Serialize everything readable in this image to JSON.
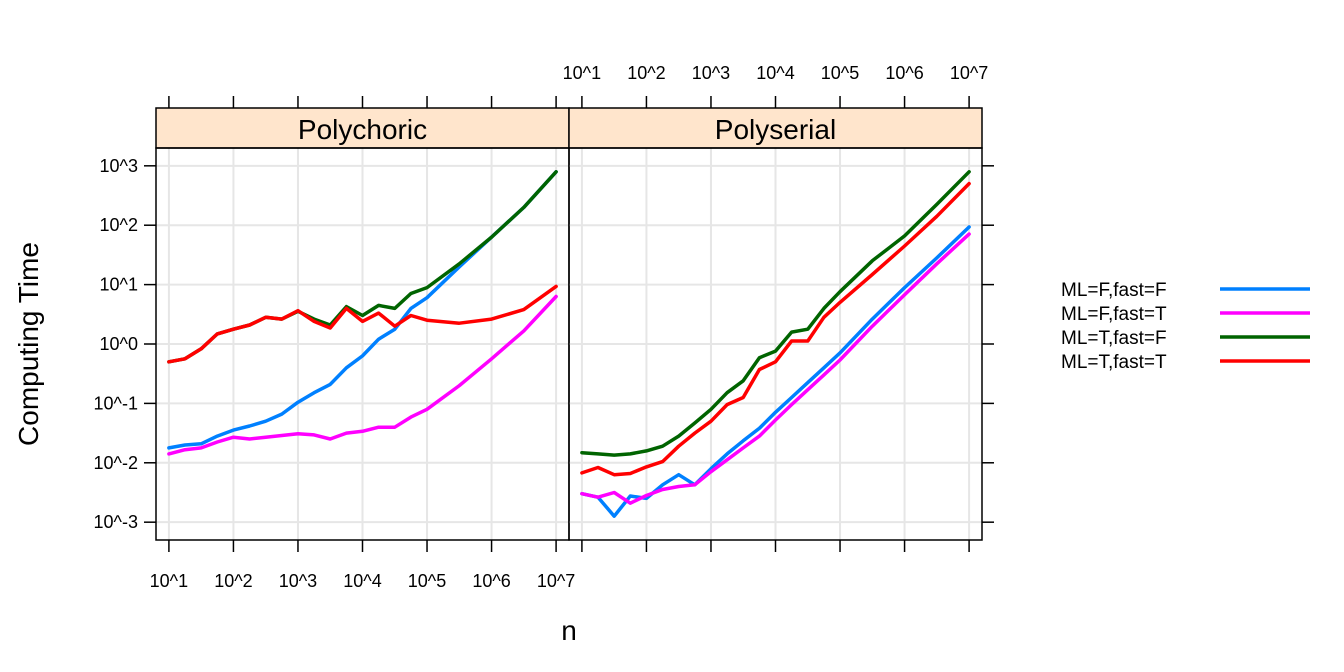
{
  "chart_data": {
    "type": "line",
    "xlabel": "n",
    "ylabel": "Computing Time",
    "x_scale": "log10",
    "y_scale": "log10",
    "xlim": [
      0.8,
      7.2
    ],
    "ylim": [
      -3.3,
      3.3
    ],
    "x_ticks": [
      {
        "value": 1,
        "label": "10^1"
      },
      {
        "value": 2,
        "label": "10^2"
      },
      {
        "value": 3,
        "label": "10^3"
      },
      {
        "value": 4,
        "label": "10^4"
      },
      {
        "value": 5,
        "label": "10^5"
      },
      {
        "value": 6,
        "label": "10^6"
      },
      {
        "value": 7,
        "label": "10^7"
      }
    ],
    "y_ticks": [
      {
        "value": -3,
        "label": "10^-3"
      },
      {
        "value": -2,
        "label": "10^-2"
      },
      {
        "value": -1,
        "label": "10^-1"
      },
      {
        "value": 0,
        "label": "10^0"
      },
      {
        "value": 1,
        "label": "10^1"
      },
      {
        "value": 2,
        "label": "10^2"
      },
      {
        "value": 3,
        "label": "10^3"
      }
    ],
    "grid": true,
    "legend_position": "right",
    "panels": [
      {
        "title": "Polychoric",
        "x": [
          1,
          1.25,
          1.5,
          1.75,
          2,
          2.25,
          2.5,
          2.75,
          3,
          3.25,
          3.5,
          3.75,
          4,
          4.25,
          4.5,
          4.75,
          5,
          5.5,
          6,
          6.5,
          7
        ],
        "series": [
          {
            "name": "ML=F,fast=F",
            "color": "#0080ff",
            "values": [
              -1.75,
              -1.7,
              -1.68,
              -1.55,
              -1.45,
              -1.38,
              -1.3,
              -1.18,
              -0.98,
              -0.82,
              -0.68,
              -0.4,
              -0.2,
              0.08,
              0.25,
              0.6,
              0.78,
              1.3,
              1.8,
              2.3,
              2.9
            ]
          },
          {
            "name": "ML=F,fast=T",
            "color": "#ff00ff",
            "values": [
              -1.85,
              -1.78,
              -1.75,
              -1.65,
              -1.57,
              -1.6,
              -1.57,
              -1.54,
              -1.51,
              -1.53,
              -1.6,
              -1.5,
              -1.47,
              -1.4,
              -1.4,
              -1.23,
              -1.1,
              -0.7,
              -0.25,
              0.22,
              0.8
            ]
          },
          {
            "name": "ML=T,fast=F",
            "color": "#006400",
            "values": [
              -0.3,
              -0.25,
              -0.08,
              0.17,
              0.25,
              0.32,
              0.45,
              0.42,
              0.55,
              0.42,
              0.32,
              0.63,
              0.48,
              0.65,
              0.6,
              0.85,
              0.95,
              1.35,
              1.8,
              2.3,
              2.9
            ]
          },
          {
            "name": "ML=T,fast=T",
            "color": "#ff0000",
            "values": [
              -0.3,
              -0.25,
              -0.08,
              0.17,
              0.25,
              0.32,
              0.45,
              0.42,
              0.56,
              0.38,
              0.27,
              0.6,
              0.38,
              0.52,
              0.3,
              0.48,
              0.4,
              0.35,
              0.42,
              0.58,
              0.97
            ]
          }
        ]
      },
      {
        "title": "Polyserial",
        "x": [
          1,
          1.25,
          1.5,
          1.75,
          2,
          2.25,
          2.5,
          2.75,
          3,
          3.25,
          3.5,
          3.75,
          4,
          4.25,
          4.5,
          4.75,
          5,
          5.5,
          6,
          6.5,
          7
        ],
        "series": [
          {
            "name": "ML=F,fast=F",
            "color": "#0080ff",
            "values": [
              -2.52,
              -2.58,
              -2.9,
              -2.56,
              -2.6,
              -2.37,
              -2.2,
              -2.37,
              -2.1,
              -1.85,
              -1.63,
              -1.42,
              -1.15,
              -0.9,
              -0.65,
              -0.4,
              -0.15,
              0.42,
              0.95,
              1.45,
              1.97
            ]
          },
          {
            "name": "ML=F,fast=T",
            "color": "#ff00ff",
            "values": [
              -2.52,
              -2.58,
              -2.5,
              -2.68,
              -2.55,
              -2.45,
              -2.4,
              -2.37,
              -2.15,
              -1.95,
              -1.75,
              -1.55,
              -1.28,
              -1.02,
              -0.77,
              -0.52,
              -0.27,
              0.3,
              0.83,
              1.35,
              1.85
            ]
          },
          {
            "name": "ML=T,fast=F",
            "color": "#006400",
            "values": [
              -1.83,
              -1.85,
              -1.87,
              -1.85,
              -1.8,
              -1.72,
              -1.55,
              -1.33,
              -1.1,
              -0.82,
              -0.62,
              -0.23,
              -0.12,
              0.2,
              0.25,
              0.6,
              0.88,
              1.4,
              1.82,
              2.35,
              2.9
            ]
          },
          {
            "name": "ML=T,fast=T",
            "color": "#ff0000",
            "values": [
              -2.17,
              -2.08,
              -2.2,
              -2.18,
              -2.07,
              -1.98,
              -1.72,
              -1.5,
              -1.3,
              -1.02,
              -0.9,
              -0.43,
              -0.3,
              0.05,
              0.05,
              0.45,
              0.7,
              1.17,
              1.65,
              2.15,
              2.7
            ]
          }
        ]
      }
    ]
  }
}
